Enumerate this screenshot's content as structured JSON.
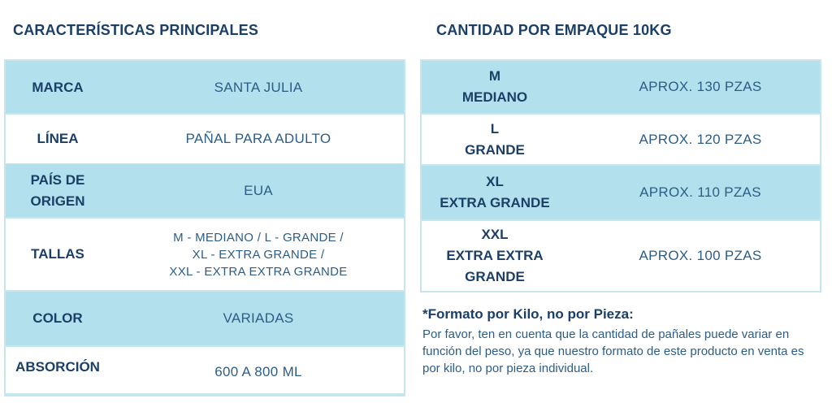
{
  "left": {
    "heading": "CARACTERÍSTICAS PRINCIPALES",
    "rows": [
      {
        "label": "MARCA",
        "value": "SANTA JULIA"
      },
      {
        "label": "LÍNEA",
        "value": "PAÑAL PARA ADULTO"
      },
      {
        "label": "PAÍS DE\nORIGEN",
        "value": "EUA"
      },
      {
        "label": "TALLAS",
        "value": "M - MEDIANO / L - GRANDE /\nXL  - EXTRA GRANDE /\nXXL - EXTRA EXTRA GRANDE"
      },
      {
        "label": "COLOR",
        "value": "VARIADAS"
      },
      {
        "label": "ABSORCIÓN",
        "value": "600 A 800 ML"
      }
    ]
  },
  "right": {
    "heading": "CANTIDAD POR EMPAQUE 10KG",
    "rows": [
      {
        "label": "M\nMEDIANO",
        "value": "APROX. 130 PZAS"
      },
      {
        "label": "L\nGRANDE",
        "value": "APROX. 120 PZAS"
      },
      {
        "label": "XL\nEXTRA GRANDE",
        "value": "APROX. 110 PZAS"
      },
      {
        "label": "XXL\nEXTRA EXTRA\nGRANDE",
        "value": "APROX. 100 PZAS"
      }
    ]
  },
  "note": {
    "title": "*Formato por Kilo, no por Pieza:",
    "body": "Por favor, ten en cuenta que la cantidad de pañales puede variar en función del peso, ya que nuestro formato de este producto en venta es por kilo, no por pieza individual."
  },
  "colors": {
    "row_blue": "#b2e1ed",
    "border": "#c5e6ef",
    "heading_text": "#1b3f66",
    "value_text": "#2c5d86"
  }
}
